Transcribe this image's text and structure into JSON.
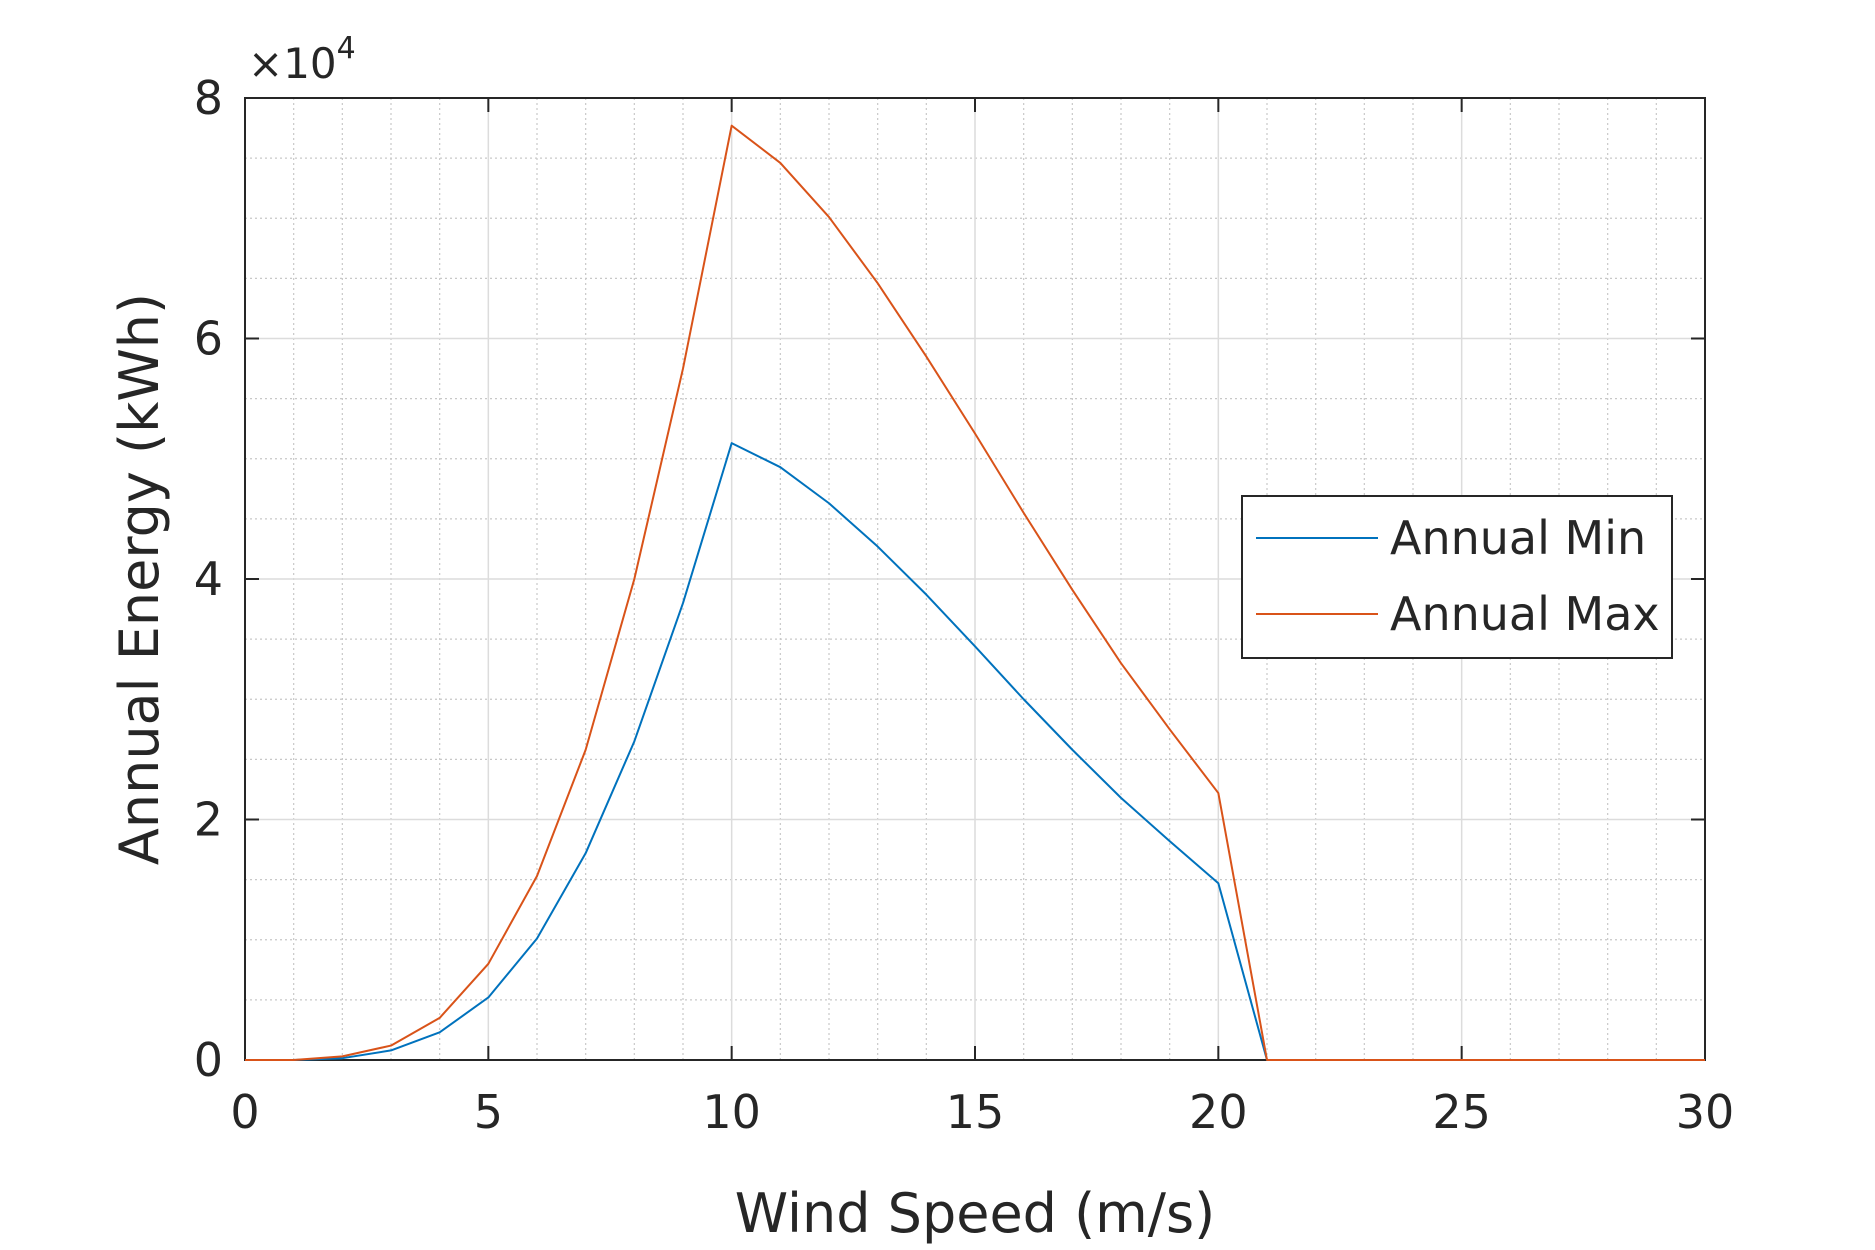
{
  "chart_data": {
    "type": "line",
    "title": "",
    "xlabel": "Wind Speed (m/s)",
    "ylabel": "Annual Energy (kWh)",
    "xlim": [
      0,
      30
    ],
    "ylim": [
      0,
      80000
    ],
    "xticks": [
      0,
      5,
      10,
      15,
      20,
      25,
      30
    ],
    "yticks": [
      0,
      20000,
      40000,
      60000,
      80000
    ],
    "ytick_labels": [
      "0",
      "2",
      "4",
      "6",
      "8"
    ],
    "y_exponent": {
      "base": "×10",
      "power": "4"
    },
    "grid": true,
    "minor_grid": true,
    "legend_position": "right",
    "x": [
      0,
      1,
      2,
      3,
      4,
      5,
      6,
      7,
      8,
      9,
      10,
      11,
      12,
      13,
      14,
      15,
      16,
      17,
      18,
      19,
      20,
      21,
      22,
      23,
      24,
      25,
      26,
      27,
      28,
      29,
      30
    ],
    "series": [
      {
        "name": "Annual Min",
        "color": "#0072BD",
        "values": [
          0,
          0,
          150,
          800,
          2300,
          5200,
          10100,
          17200,
          26500,
          38000,
          51300,
          49300,
          46300,
          42700,
          38700,
          34400,
          30000,
          25800,
          21800,
          18200,
          14700,
          0,
          0,
          0,
          0,
          0,
          0,
          0,
          0,
          0,
          0
        ]
      },
      {
        "name": "Annual Max",
        "color": "#D95319",
        "values": [
          0,
          0,
          300,
          1200,
          3500,
          8000,
          15300,
          25800,
          40000,
          57500,
          77700,
          74600,
          70100,
          64600,
          58500,
          52100,
          45500,
          39100,
          33000,
          27500,
          22200,
          0,
          0,
          0,
          0,
          0,
          0,
          0,
          0,
          0,
          0
        ]
      }
    ]
  }
}
